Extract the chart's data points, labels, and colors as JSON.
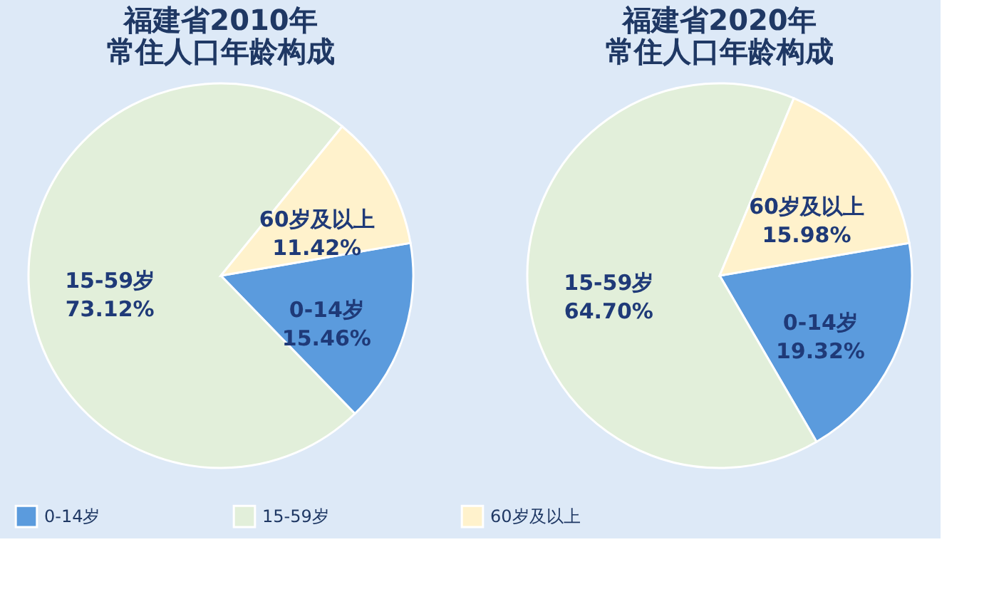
{
  "chart_data": [
    {
      "type": "pie",
      "title": "福建省2010年常住人口年龄构成",
      "categories": [
        "0-14岁",
        "15-59岁",
        "60岁及以上"
      ],
      "values": [
        15.46,
        73.12,
        11.42
      ],
      "colors": [
        "#5b9bdd",
        "#e2efda",
        "#fff2cc"
      ],
      "data_labels": true,
      "value_labels": [
        "15.46%",
        "73.12%",
        "11.42%"
      ],
      "legend": "bottom"
    },
    {
      "type": "pie",
      "title": "福建省2020年常住人口年龄构成",
      "categories": [
        "0-14岁",
        "15-59岁",
        "60岁及以上"
      ],
      "values": [
        19.32,
        64.7,
        15.98
      ],
      "colors": [
        "#5b9bdd",
        "#e2efda",
        "#fff2cc"
      ],
      "data_labels": true,
      "value_labels": [
        "19.32%",
        "64.70%",
        "15.98%"
      ]
    }
  ]
}
